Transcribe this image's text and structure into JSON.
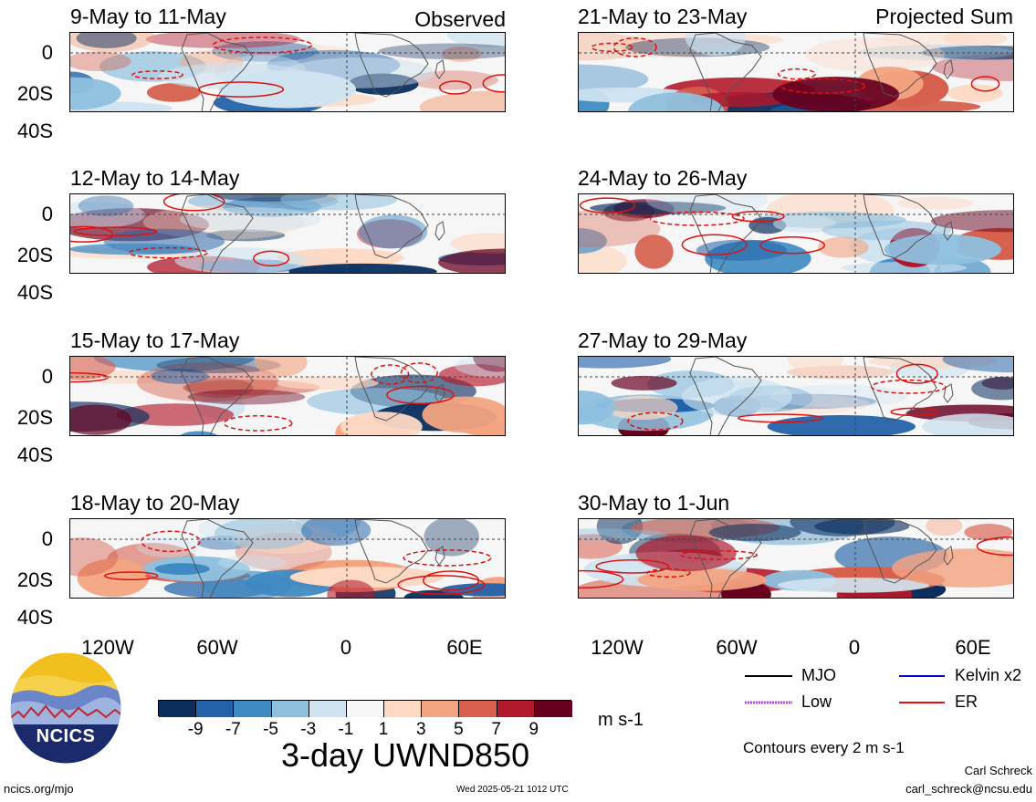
{
  "headers": {
    "left": "Observed",
    "right": "Projected Sum"
  },
  "panels": {
    "left": [
      "9-May to 11-May",
      "12-May to 14-May",
      "15-May to 17-May",
      "18-May to 20-May"
    ],
    "right": [
      "21-May to 23-May",
      "24-May to 26-May",
      "27-May to 29-May",
      "30-May to 1-Jun"
    ]
  },
  "y_ticks": [
    "0",
    "20S",
    "40S"
  ],
  "x_ticks": [
    "120W",
    "60W",
    "0",
    "60E"
  ],
  "legend": {
    "items": [
      {
        "label": "MJO",
        "color": "#000000"
      },
      {
        "label": "Kelvin x2",
        "color": "#0000cc"
      },
      {
        "label": "Low",
        "color": "#bb44ee"
      },
      {
        "label": "ER",
        "color": "#dd1111"
      }
    ],
    "contour_note": "Contours every 2 m s-1"
  },
  "colorbar": {
    "colors": [
      "#0b2e5e",
      "#2362a8",
      "#3f8ac2",
      "#8ec0de",
      "#cfe3f0",
      "#f7f7f7",
      "#fdd9c4",
      "#f3a481",
      "#d6604d",
      "#b2182b",
      "#67001f"
    ],
    "labels": [
      "-9",
      "-7",
      "-5",
      "-3",
      "-1",
      "1",
      "3",
      "5",
      "7",
      "9"
    ],
    "units": "m s-1"
  },
  "title": "3-day UWND850",
  "footer": {
    "left": "ncics.org/mjo",
    "center": "Wed 2025-05-21 1012 UTC",
    "author": "Carl Schreck",
    "email": "carl_schreck@ncsu.edu"
  },
  "logo": {
    "text": "NCICS"
  }
}
